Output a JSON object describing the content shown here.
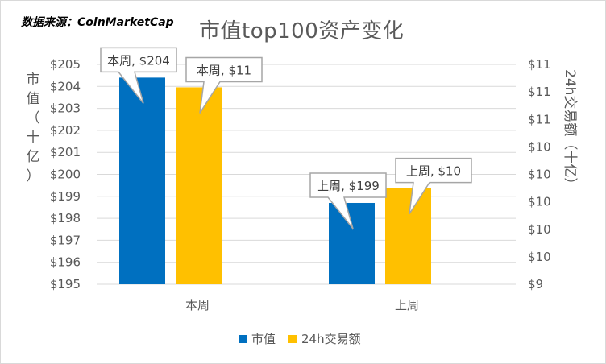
{
  "source_note": "数据来源：CoinMarketCap",
  "chart_data": {
    "type": "bar",
    "title": "市值top100资产变化",
    "categories": [
      "本周",
      "上周"
    ],
    "series": [
      {
        "name": "市值",
        "axis": "left",
        "values": [
          204.4,
          198.7
        ],
        "color": "#0070c0",
        "data_labels": [
          "本周, $204",
          "上周, $199"
        ]
      },
      {
        "name": "24h交易额",
        "axis": "right",
        "values": [
          11.15,
          10.05
        ],
        "color": "#ffc000",
        "data_labels": [
          "本周, $11",
          "上周, $10"
        ]
      }
    ],
    "ylabel": "市值（十亿）",
    "ylabel_right": "24h交易额（十亿）",
    "ylim": [
      195,
      205
    ],
    "yticks": [
      "$205",
      "$204",
      "$203",
      "$202",
      "$201",
      "$200",
      "$199",
      "$198",
      "$197",
      "$196",
      "$195"
    ],
    "ylim_right": [
      9,
      11.4
    ],
    "yticks_right": [
      "$11",
      "$11",
      "$11",
      "$10",
      "$10",
      "$10",
      "$10",
      "$10",
      "$9"
    ],
    "grid": true,
    "legend_position": "bottom"
  }
}
